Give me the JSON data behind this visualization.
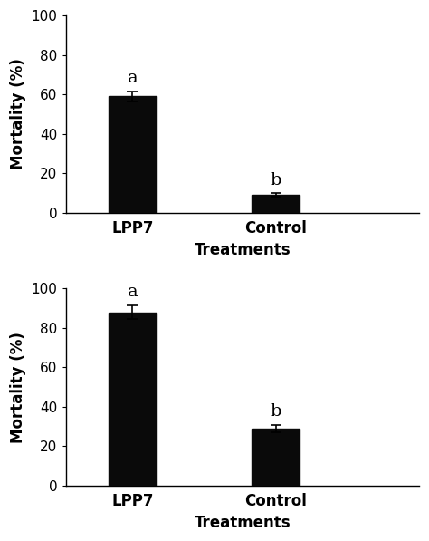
{
  "top": {
    "categories": [
      "LPP7",
      "Control"
    ],
    "values": [
      59.0,
      9.0
    ],
    "errors": [
      2.5,
      1.0
    ],
    "letters": [
      "a",
      "b"
    ],
    "ylabel": "Mortality (%)",
    "xlabel": "Treatments",
    "ylim": [
      0,
      100
    ],
    "yticks": [
      0,
      20,
      40,
      60,
      80,
      100
    ]
  },
  "bottom": {
    "categories": [
      "LPP7",
      "Control"
    ],
    "values": [
      88.0,
      29.0
    ],
    "errors": [
      3.5,
      2.0
    ],
    "letters": [
      "a",
      "b"
    ],
    "ylabel": "Mortality (%)",
    "xlabel": "Treatments",
    "ylim": [
      0,
      100
    ],
    "yticks": [
      0,
      20,
      40,
      60,
      80,
      100
    ]
  },
  "bar_color": "#0a0a0a",
  "bar_width": 0.5,
  "bar_positions": [
    1.0,
    2.5
  ],
  "xlim": [
    0.3,
    4.0
  ],
  "letter_fontsize": 14,
  "label_fontsize": 12,
  "tick_fontsize": 11,
  "background_color": "#ffffff"
}
